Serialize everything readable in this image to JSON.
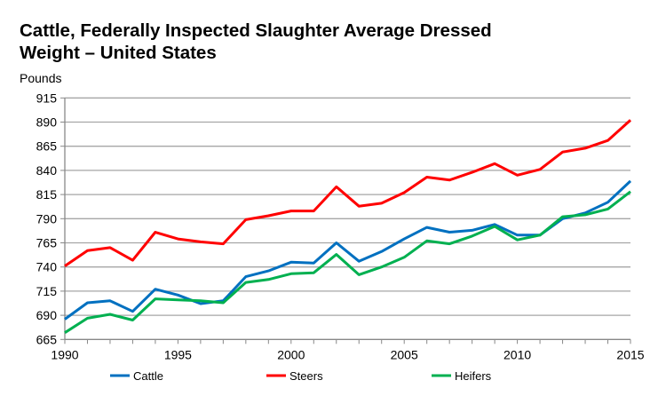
{
  "chart_data": {
    "type": "line",
    "title_lines": [
      "Cattle, Federally Inspected Slaughter Average Dressed",
      "Weight – United States"
    ],
    "ylabel": "Pounds",
    "xlabel": "",
    "xlim": [
      1990,
      2015
    ],
    "ylim": [
      665,
      915
    ],
    "x_ticks": [
      "1990",
      "1995",
      "2000",
      "2005",
      "2010",
      "2015"
    ],
    "y_ticks": [
      "665",
      "690",
      "715",
      "740",
      "765",
      "790",
      "815",
      "840",
      "865",
      "890",
      "915"
    ],
    "grid": true,
    "legend_position": "bottom",
    "x": [
      1990,
      1991,
      1992,
      1993,
      1994,
      1995,
      1996,
      1997,
      1998,
      1999,
      2000,
      2001,
      2002,
      2003,
      2004,
      2005,
      2006,
      2007,
      2008,
      2009,
      2010,
      2011,
      2012,
      2013,
      2014,
      2015
    ],
    "series": [
      {
        "name": "Cattle",
        "color": "#0070C0",
        "values": [
          686,
          703,
          705,
          694,
          717,
          711,
          702,
          705,
          730,
          736,
          745,
          744,
          765,
          746,
          756,
          769,
          781,
          776,
          778,
          784,
          773,
          773,
          790,
          796,
          807,
          829
        ]
      },
      {
        "name": "Steers",
        "color": "#FF0000",
        "values": [
          741,
          757,
          760,
          747,
          776,
          769,
          766,
          764,
          789,
          793,
          798,
          798,
          823,
          803,
          806,
          817,
          833,
          830,
          838,
          847,
          835,
          841,
          859,
          863,
          871,
          892
        ]
      },
      {
        "name": "Heifers",
        "color": "#00B050",
        "values": [
          672,
          687,
          691,
          685,
          707,
          706,
          705,
          703,
          724,
          727,
          733,
          734,
          753,
          732,
          740,
          750,
          767,
          764,
          772,
          782,
          768,
          773,
          792,
          794,
          800,
          818
        ]
      }
    ]
  }
}
